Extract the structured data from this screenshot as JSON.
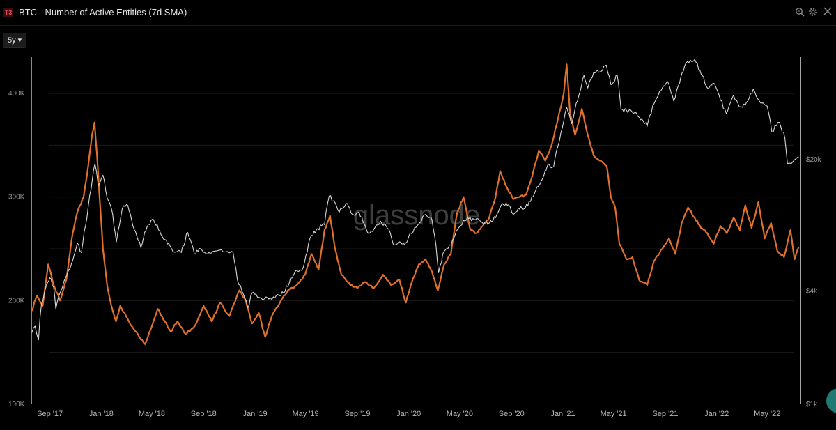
{
  "header": {
    "badge": "T3",
    "title": "BTC - Number of Active Entities (7d SMA)",
    "icons": [
      "zoom-icon",
      "gear-icon",
      "close-icon"
    ]
  },
  "controls": {
    "range_label": "5y ▾"
  },
  "watermark": "glassnode",
  "colors": {
    "entities": "#e0702a",
    "price": "#d9d9d9",
    "background": "#000000",
    "grid": "#1b1b1b"
  },
  "chart_data": {
    "type": "line",
    "title": "BTC - Number of Active Entities (7d SMA)",
    "x_ticks": [
      "Sep '17",
      "Jan '18",
      "May '18",
      "Sep '18",
      "Jan '19",
      "May '19",
      "Sep '19",
      "Jan '20",
      "May '20",
      "Sep '20",
      "Jan '21",
      "May '21",
      "Sep '21",
      "Jan '22",
      "May '22"
    ],
    "x_range": [
      "2017-07-19",
      "2022-07-19"
    ],
    "y_left": {
      "ticks": [
        100000,
        200000,
        300000,
        400000
      ],
      "tick_labels": [
        "100K",
        "200K",
        "300K",
        "400K"
      ],
      "range": [
        100000,
        435000
      ]
    },
    "y_right": {
      "scale": "log",
      "ticks": [
        1000,
        4000,
        20000
      ],
      "tick_labels": [
        "$1k",
        "$4k",
        "$20k"
      ],
      "range": [
        1000,
        70000
      ]
    },
    "legend": "none",
    "grid": true,
    "series": [
      {
        "axis": "left",
        "points": [
          [
            "2017-07-20",
            190000
          ],
          [
            "2017-08-01",
            205000
          ],
          [
            "2017-08-15",
            195000
          ],
          [
            "2017-08-28",
            235000
          ],
          [
            "2017-09-10",
            215000
          ],
          [
            "2017-09-25",
            200000
          ],
          [
            "2017-10-10",
            220000
          ],
          [
            "2017-10-25",
            265000
          ],
          [
            "2017-11-05",
            285000
          ],
          [
            "2017-11-20",
            300000
          ],
          [
            "2017-12-01",
            330000
          ],
          [
            "2017-12-10",
            360000
          ],
          [
            "2017-12-16",
            372000
          ],
          [
            "2017-12-22",
            340000
          ],
          [
            "2017-12-28",
            300000
          ],
          [
            "2018-01-05",
            250000
          ],
          [
            "2018-01-15",
            215000
          ],
          [
            "2018-01-25",
            195000
          ],
          [
            "2018-02-05",
            180000
          ],
          [
            "2018-02-15",
            195000
          ],
          [
            "2018-03-01",
            185000
          ],
          [
            "2018-03-15",
            175000
          ],
          [
            "2018-04-01",
            165000
          ],
          [
            "2018-04-15",
            158000
          ],
          [
            "2018-05-01",
            175000
          ],
          [
            "2018-05-15",
            192000
          ],
          [
            "2018-06-01",
            180000
          ],
          [
            "2018-06-15",
            170000
          ],
          [
            "2018-07-01",
            180000
          ],
          [
            "2018-07-20",
            168000
          ],
          [
            "2018-08-10",
            175000
          ],
          [
            "2018-09-01",
            195000
          ],
          [
            "2018-09-20",
            180000
          ],
          [
            "2018-10-10",
            198000
          ],
          [
            "2018-11-01",
            185000
          ],
          [
            "2018-11-25",
            210000
          ],
          [
            "2018-12-10",
            200000
          ],
          [
            "2018-12-25",
            178000
          ],
          [
            "2019-01-10",
            188000
          ],
          [
            "2019-01-25",
            165000
          ],
          [
            "2019-02-10",
            185000
          ],
          [
            "2019-03-01",
            198000
          ],
          [
            "2019-03-20",
            210000
          ],
          [
            "2019-04-10",
            215000
          ],
          [
            "2019-04-30",
            225000
          ],
          [
            "2019-05-15",
            245000
          ],
          [
            "2019-06-01",
            230000
          ],
          [
            "2019-06-15",
            268000
          ],
          [
            "2019-06-28",
            282000
          ],
          [
            "2019-07-10",
            250000
          ],
          [
            "2019-07-25",
            225000
          ],
          [
            "2019-08-15",
            215000
          ],
          [
            "2019-09-01",
            212000
          ],
          [
            "2019-09-20",
            218000
          ],
          [
            "2019-10-10",
            212000
          ],
          [
            "2019-11-01",
            225000
          ],
          [
            "2019-11-20",
            215000
          ],
          [
            "2019-12-10",
            220000
          ],
          [
            "2019-12-25",
            198000
          ],
          [
            "2020-01-10",
            220000
          ],
          [
            "2020-01-25",
            235000
          ],
          [
            "2020-02-10",
            240000
          ],
          [
            "2020-02-25",
            228000
          ],
          [
            "2020-03-10",
            210000
          ],
          [
            "2020-03-25",
            235000
          ],
          [
            "2020-04-10",
            245000
          ],
          [
            "2020-04-25",
            285000
          ],
          [
            "2020-05-10",
            300000
          ],
          [
            "2020-05-25",
            270000
          ],
          [
            "2020-06-10",
            265000
          ],
          [
            "2020-06-25",
            272000
          ],
          [
            "2020-07-10",
            280000
          ],
          [
            "2020-07-25",
            300000
          ],
          [
            "2020-08-05",
            325000
          ],
          [
            "2020-08-20",
            310000
          ],
          [
            "2020-09-05",
            298000
          ],
          [
            "2020-09-20",
            300000
          ],
          [
            "2020-10-05",
            302000
          ],
          [
            "2020-10-20",
            320000
          ],
          [
            "2020-11-05",
            345000
          ],
          [
            "2020-11-20",
            335000
          ],
          [
            "2020-12-05",
            350000
          ],
          [
            "2020-12-20",
            375000
          ],
          [
            "2021-01-03",
            400000
          ],
          [
            "2021-01-10",
            428000
          ],
          [
            "2021-01-18",
            380000
          ],
          [
            "2021-01-30",
            360000
          ],
          [
            "2021-02-15",
            385000
          ],
          [
            "2021-03-01",
            360000
          ],
          [
            "2021-03-15",
            340000
          ],
          [
            "2021-04-01",
            335000
          ],
          [
            "2021-04-15",
            330000
          ],
          [
            "2021-04-25",
            300000
          ],
          [
            "2021-05-05",
            290000
          ],
          [
            "2021-05-15",
            255000
          ],
          [
            "2021-06-01",
            240000
          ],
          [
            "2021-06-15",
            242000
          ],
          [
            "2021-07-01",
            220000
          ],
          [
            "2021-07-20",
            215000
          ],
          [
            "2021-08-05",
            238000
          ],
          [
            "2021-08-25",
            250000
          ],
          [
            "2021-09-10",
            260000
          ],
          [
            "2021-09-25",
            245000
          ],
          [
            "2021-10-10",
            275000
          ],
          [
            "2021-10-25",
            290000
          ],
          [
            "2021-11-10",
            280000
          ],
          [
            "2021-11-25",
            270000
          ],
          [
            "2021-12-10",
            265000
          ],
          [
            "2021-12-25",
            255000
          ],
          [
            "2022-01-10",
            272000
          ],
          [
            "2022-01-25",
            265000
          ],
          [
            "2022-02-10",
            280000
          ],
          [
            "2022-02-25",
            268000
          ],
          [
            "2022-03-10",
            292000
          ],
          [
            "2022-03-25",
            270000
          ],
          [
            "2022-04-10",
            295000
          ],
          [
            "2022-04-25",
            260000
          ],
          [
            "2022-05-10",
            275000
          ],
          [
            "2022-05-25",
            248000
          ],
          [
            "2022-06-10",
            242000
          ],
          [
            "2022-06-25",
            268000
          ],
          [
            "2022-07-05",
            240000
          ],
          [
            "2022-07-15",
            252000
          ]
        ]
      },
      {
        "axis": "right",
        "points": [
          [
            "2017-07-20",
            2400
          ],
          [
            "2017-07-28",
            2600
          ],
          [
            "2017-08-05",
            2200
          ],
          [
            "2017-08-12",
            3400
          ],
          [
            "2017-08-20",
            4000
          ],
          [
            "2017-09-01",
            4700
          ],
          [
            "2017-09-10",
            4200
          ],
          [
            "2017-09-15",
            3200
          ],
          [
            "2017-09-25",
            3900
          ],
          [
            "2017-10-10",
            4800
          ],
          [
            "2017-10-25",
            5800
          ],
          [
            "2017-11-05",
            7200
          ],
          [
            "2017-11-15",
            6400
          ],
          [
            "2017-11-28",
            9800
          ],
          [
            "2017-12-08",
            14000
          ],
          [
            "2017-12-17",
            19000
          ],
          [
            "2017-12-25",
            14500
          ],
          [
            "2018-01-05",
            16500
          ],
          [
            "2018-01-15",
            12500
          ],
          [
            "2018-01-25",
            11000
          ],
          [
            "2018-02-06",
            7300
          ],
          [
            "2018-02-20",
            11000
          ],
          [
            "2018-03-05",
            11400
          ],
          [
            "2018-03-20",
            8500
          ],
          [
            "2018-04-05",
            6800
          ],
          [
            "2018-04-20",
            8800
          ],
          [
            "2018-05-05",
            9600
          ],
          [
            "2018-05-20",
            8300
          ],
          [
            "2018-06-01",
            7500
          ],
          [
            "2018-06-20",
            6500
          ],
          [
            "2018-07-10",
            6400
          ],
          [
            "2018-07-25",
            8200
          ],
          [
            "2018-08-10",
            6300
          ],
          [
            "2018-08-25",
            6700
          ],
          [
            "2018-09-10",
            6300
          ],
          [
            "2018-10-10",
            6600
          ],
          [
            "2018-11-10",
            6400
          ],
          [
            "2018-11-20",
            4600
          ],
          [
            "2018-12-01",
            4000
          ],
          [
            "2018-12-15",
            3250
          ],
          [
            "2018-12-25",
            3900
          ],
          [
            "2019-01-10",
            3700
          ],
          [
            "2019-02-10",
            3600
          ],
          [
            "2019-03-10",
            3900
          ],
          [
            "2019-04-05",
            5000
          ],
          [
            "2019-04-25",
            5300
          ],
          [
            "2019-05-15",
            7900
          ],
          [
            "2019-05-30",
            8600
          ],
          [
            "2019-06-15",
            9000
          ],
          [
            "2019-06-26",
            12800
          ],
          [
            "2019-07-10",
            11800
          ],
          [
            "2019-07-20",
            10500
          ],
          [
            "2019-08-05",
            11700
          ],
          [
            "2019-08-20",
            10200
          ],
          [
            "2019-09-05",
            10500
          ],
          [
            "2019-09-25",
            8200
          ],
          [
            "2019-10-10",
            8500
          ],
          [
            "2019-10-26",
            9400
          ],
          [
            "2019-11-15",
            8500
          ],
          [
            "2019-11-25",
            7100
          ],
          [
            "2019-12-10",
            7300
          ],
          [
            "2019-12-25",
            7200
          ],
          [
            "2020-01-15",
            8700
          ],
          [
            "2020-02-10",
            10200
          ],
          [
            "2020-02-25",
            9600
          ],
          [
            "2020-03-12",
            5000
          ],
          [
            "2020-03-25",
            6500
          ],
          [
            "2020-04-10",
            7000
          ],
          [
            "2020-04-29",
            8700
          ],
          [
            "2020-05-10",
            9500
          ],
          [
            "2020-06-01",
            9700
          ],
          [
            "2020-06-20",
            9300
          ],
          [
            "2020-07-10",
            9200
          ],
          [
            "2020-07-25",
            9800
          ],
          [
            "2020-08-10",
            11700
          ],
          [
            "2020-08-25",
            11500
          ],
          [
            "2020-09-05",
            10200
          ],
          [
            "2020-09-20",
            10900
          ],
          [
            "2020-10-10",
            11400
          ],
          [
            "2020-10-25",
            13100
          ],
          [
            "2020-11-10",
            15300
          ],
          [
            "2020-11-25",
            18500
          ],
          [
            "2020-12-10",
            18300
          ],
          [
            "2020-12-20",
            23500
          ],
          [
            "2021-01-03",
            32000
          ],
          [
            "2021-01-10",
            38000
          ],
          [
            "2021-01-22",
            31000
          ],
          [
            "2021-02-08",
            44000
          ],
          [
            "2021-02-20",
            56000
          ],
          [
            "2021-03-01",
            48000
          ],
          [
            "2021-03-15",
            58000
          ],
          [
            "2021-03-30",
            58500
          ],
          [
            "2021-04-14",
            63500
          ],
          [
            "2021-04-25",
            50000
          ],
          [
            "2021-05-10",
            56000
          ],
          [
            "2021-05-19",
            37000
          ],
          [
            "2021-06-01",
            36500
          ],
          [
            "2021-06-20",
            35500
          ],
          [
            "2021-07-01",
            33500
          ],
          [
            "2021-07-20",
            30000
          ],
          [
            "2021-08-05",
            39500
          ],
          [
            "2021-08-25",
            48000
          ],
          [
            "2021-09-06",
            52000
          ],
          [
            "2021-09-21",
            41000
          ],
          [
            "2021-10-05",
            51000
          ],
          [
            "2021-10-20",
            65000
          ],
          [
            "2021-11-10",
            68000
          ],
          [
            "2021-11-25",
            57000
          ],
          [
            "2021-12-10",
            48000
          ],
          [
            "2021-12-27",
            50500
          ],
          [
            "2022-01-10",
            41500
          ],
          [
            "2022-01-24",
            35000
          ],
          [
            "2022-02-10",
            44000
          ],
          [
            "2022-02-24",
            38000
          ],
          [
            "2022-03-10",
            39000
          ],
          [
            "2022-03-29",
            47500
          ],
          [
            "2022-04-15",
            40000
          ],
          [
            "2022-05-01",
            38500
          ],
          [
            "2022-05-12",
            28000
          ],
          [
            "2022-05-30",
            31500
          ],
          [
            "2022-06-12",
            26000
          ],
          [
            "2022-06-18",
            19000
          ],
          [
            "2022-07-01",
            19500
          ],
          [
            "2022-07-15",
            20500
          ]
        ]
      }
    ]
  }
}
